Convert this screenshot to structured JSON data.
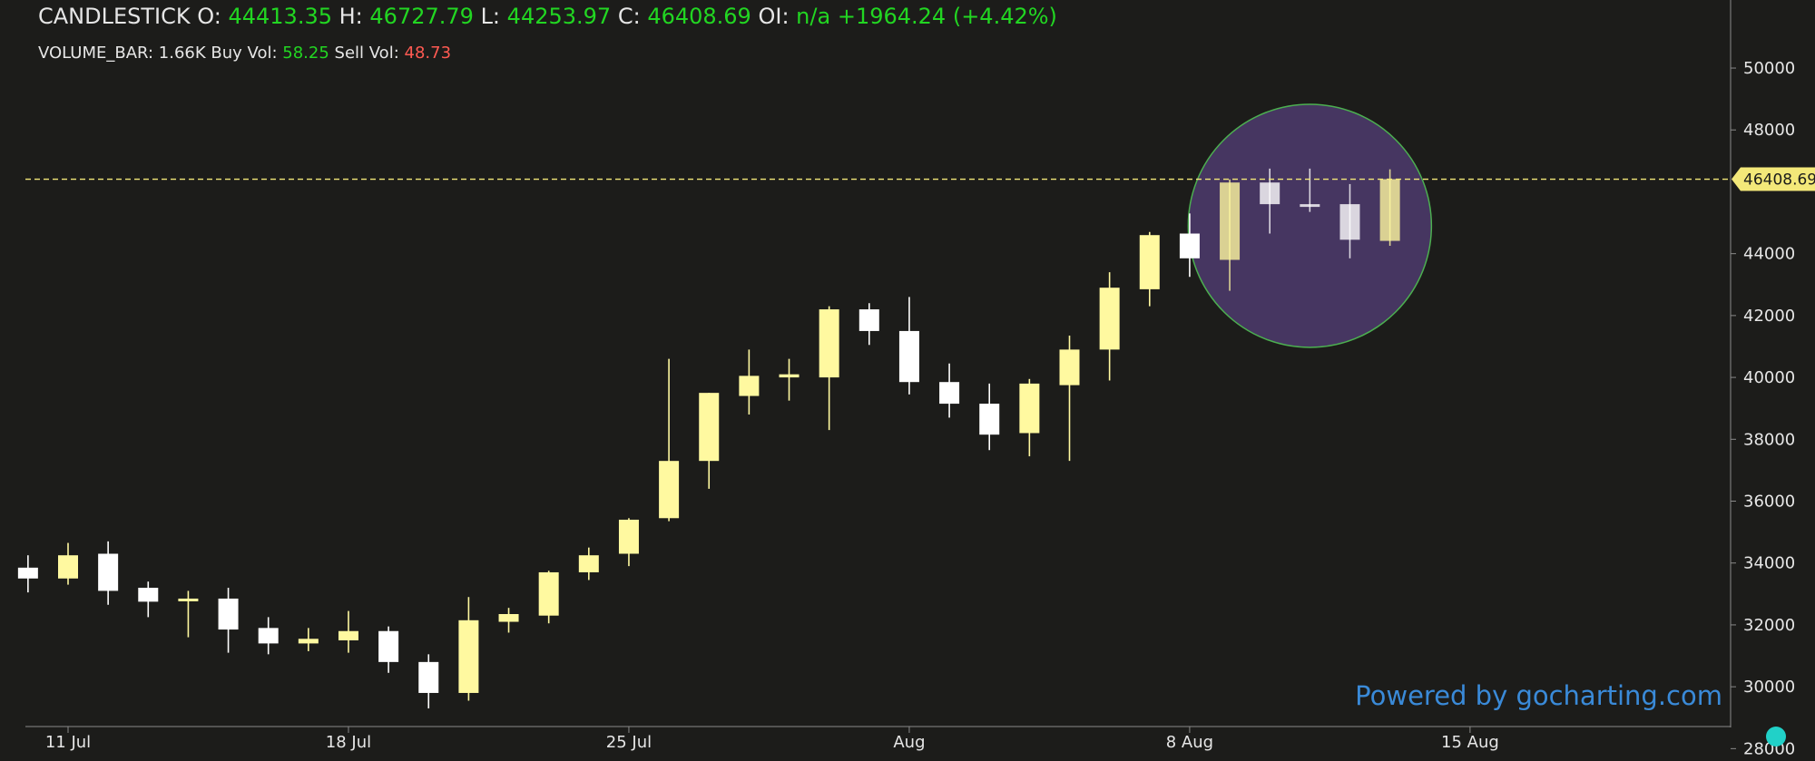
{
  "legend": {
    "series_name": "CANDLESTICK",
    "o_label": "O:",
    "o": "44413.35",
    "h_label": "H:",
    "h": "46727.79",
    "l_label": "L:",
    "l": "44253.97",
    "c_label": "C:",
    "c": "46408.69",
    "oi_label": "OI:",
    "oi": "n/a",
    "change": "+1964.24",
    "change_pct": "(+4.42%)",
    "volume_name": "VOLUME_BAR:",
    "volume": "1.66K",
    "buy_label": "Buy Vol:",
    "buy": "58.25",
    "sell_label": "Sell Vol:",
    "sell": "48.73"
  },
  "watermark": "Powered by gocharting.com",
  "colors": {
    "background": "#1c1c1a",
    "up_candle": "#fff9a0",
    "down_candle": "#ffffff",
    "price_line": "#f3e879",
    "highlight_fill": "#4d3b6e",
    "highlight_stroke": "#4caf50",
    "value_green": "#22d622",
    "value_red": "#ff5a52",
    "watermark": "#3a8ad8"
  },
  "chart_data": {
    "type": "candlestick",
    "x_ticks": [
      "11 Jul",
      "18 Jul",
      "25 Jul",
      "Aug",
      "8 Aug",
      "15 Aug"
    ],
    "y_ticks": [
      28000,
      30000,
      32000,
      34000,
      36000,
      38000,
      40000,
      42000,
      44000,
      48000,
      50000
    ],
    "ylim": [
      27600,
      52200
    ],
    "last_price": 46408.69,
    "last_price_label": "46408.69",
    "highlight": {
      "shape": "circle",
      "center_date": "2021-08-11",
      "center_price": 44900
    },
    "candles": [
      {
        "date": "2021-07-10",
        "open": 33850,
        "high": 34250,
        "low": 33050,
        "close": 33500
      },
      {
        "date": "2021-07-11",
        "open": 33500,
        "high": 34650,
        "low": 33300,
        "close": 34250
      },
      {
        "date": "2021-07-12",
        "open": 34300,
        "high": 34700,
        "low": 32650,
        "close": 33100
      },
      {
        "date": "2021-07-13",
        "open": 33200,
        "high": 33400,
        "low": 32250,
        "close": 32750
      },
      {
        "date": "2021-07-14",
        "open": 32800,
        "high": 33100,
        "low": 31600,
        "close": 32850
      },
      {
        "date": "2021-07-15",
        "open": 32850,
        "high": 33200,
        "low": 31100,
        "close": 31850
      },
      {
        "date": "2021-07-16",
        "open": 31900,
        "high": 32250,
        "low": 31050,
        "close": 31400
      },
      {
        "date": "2021-07-17",
        "open": 31400,
        "high": 31900,
        "low": 31150,
        "close": 31550
      },
      {
        "date": "2021-07-18",
        "open": 31500,
        "high": 32450,
        "low": 31100,
        "close": 31800
      },
      {
        "date": "2021-07-19",
        "open": 31800,
        "high": 31950,
        "low": 30450,
        "close": 30800
      },
      {
        "date": "2021-07-20",
        "open": 30800,
        "high": 31050,
        "low": 29300,
        "close": 29800
      },
      {
        "date": "2021-07-21",
        "open": 29800,
        "high": 32900,
        "low": 29550,
        "close": 32150
      },
      {
        "date": "2021-07-22",
        "open": 32100,
        "high": 32550,
        "low": 31750,
        "close": 32350
      },
      {
        "date": "2021-07-23",
        "open": 32300,
        "high": 33750,
        "low": 32050,
        "close": 33700
      },
      {
        "date": "2021-07-24",
        "open": 33700,
        "high": 34500,
        "low": 33450,
        "close": 34250
      },
      {
        "date": "2021-07-25",
        "open": 34300,
        "high": 35450,
        "low": 33900,
        "close": 35400
      },
      {
        "date": "2021-07-26",
        "open": 35450,
        "high": 40600,
        "low": 35350,
        "close": 37300
      },
      {
        "date": "2021-07-27",
        "open": 37300,
        "high": 39500,
        "low": 36400,
        "close": 39500
      },
      {
        "date": "2021-07-28",
        "open": 39400,
        "high": 40900,
        "low": 38800,
        "close": 40050
      },
      {
        "date": "2021-07-29",
        "open": 40000,
        "high": 40600,
        "low": 39250,
        "close": 40100
      },
      {
        "date": "2021-07-30",
        "open": 40000,
        "high": 42300,
        "low": 38300,
        "close": 42200
      },
      {
        "date": "2021-07-31",
        "open": 42200,
        "high": 42400,
        "low": 41050,
        "close": 41500
      },
      {
        "date": "2021-08-01",
        "open": 41500,
        "high": 42600,
        "low": 39450,
        "close": 39850
      },
      {
        "date": "2021-08-02",
        "open": 39850,
        "high": 40450,
        "low": 38700,
        "close": 39150
      },
      {
        "date": "2021-08-03",
        "open": 39150,
        "high": 39800,
        "low": 37650,
        "close": 38150
      },
      {
        "date": "2021-08-04",
        "open": 38200,
        "high": 39950,
        "low": 37450,
        "close": 39800
      },
      {
        "date": "2021-08-05",
        "open": 39750,
        "high": 41350,
        "low": 37300,
        "close": 40900
      },
      {
        "date": "2021-08-06",
        "open": 40900,
        "high": 43400,
        "low": 39900,
        "close": 42900
      },
      {
        "date": "2021-08-07",
        "open": 42850,
        "high": 44700,
        "low": 42300,
        "close": 44600
      },
      {
        "date": "2021-08-08",
        "open": 44650,
        "high": 45300,
        "low": 43250,
        "close": 43850
      },
      {
        "date": "2021-08-09",
        "open": 43800,
        "high": 46400,
        "low": 42800,
        "close": 46300
      },
      {
        "date": "2021-08-10",
        "open": 46300,
        "high": 46750,
        "low": 44650,
        "close": 45600
      },
      {
        "date": "2021-08-11",
        "open": 45600,
        "high": 46750,
        "low": 45350,
        "close": 45550
      },
      {
        "date": "2021-08-12",
        "open": 45600,
        "high": 46250,
        "low": 43850,
        "close": 44450
      },
      {
        "date": "2021-08-13",
        "open": 44413.35,
        "high": 46727.79,
        "low": 44253.97,
        "close": 46408.69
      }
    ]
  }
}
